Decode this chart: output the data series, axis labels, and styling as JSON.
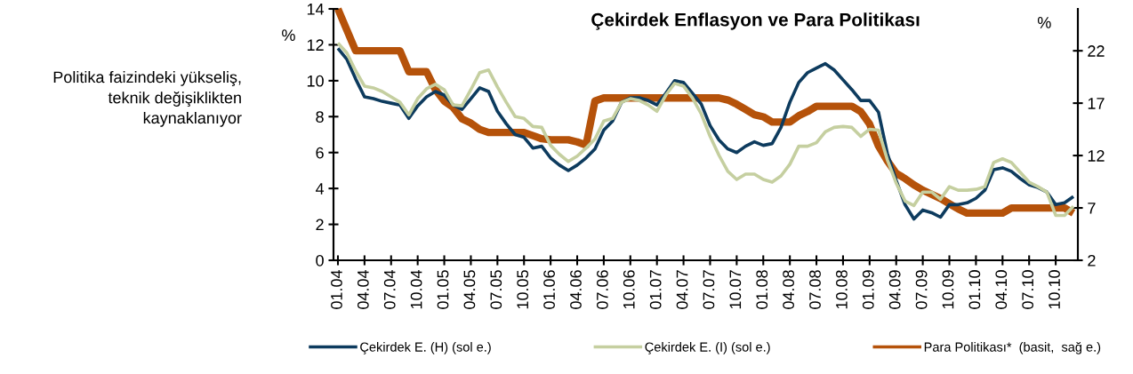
{
  "chart_data": {
    "type": "line",
    "title": "Çekirdek Enflasyon ve Para Politikası",
    "ylabel": "%",
    "y2label": "%",
    "annotations": [
      "Politika faizindeki yükseliş,\nteknik değişiklikten\nkaynaklanıyor"
    ],
    "categories": [
      "01.04",
      null,
      null,
      "04.04",
      null,
      null,
      "07.04",
      null,
      null,
      "10.04",
      null,
      null,
      "01.05",
      null,
      null,
      "04.05",
      null,
      null,
      "07.05",
      null,
      null,
      "10.05",
      null,
      null,
      "01.06",
      null,
      null,
      "04.06",
      null,
      null,
      "07.06",
      null,
      null,
      "10.06",
      null,
      null,
      "01.07",
      null,
      null,
      "04.07",
      null,
      null,
      "07.07",
      null,
      null,
      "10.07",
      null,
      null,
      "01.08",
      null,
      null,
      "04.08",
      null,
      null,
      "07.08",
      null,
      null,
      "10.08",
      null,
      null,
      "01.09",
      null,
      null,
      "04.09",
      null,
      null,
      "07.09",
      null,
      null,
      "10.09",
      null,
      null,
      "01.10",
      null,
      null,
      "04.10",
      null,
      null,
      "07.10",
      null,
      null,
      "10.10",
      null,
      null
    ],
    "series": [
      {
        "name": "Çekirdek E. (H) (sol e.)",
        "color": "#0d3b5e",
        "values": [
          11.8,
          11.2,
          10.1,
          9.1,
          9.0,
          8.85,
          8.75,
          8.65,
          7.9,
          8.6,
          9.1,
          9.4,
          9.2,
          8.65,
          8.4,
          9.0,
          9.6,
          9.4,
          8.3,
          7.6,
          7.0,
          6.85,
          6.25,
          6.35,
          5.7,
          5.3,
          5.0,
          5.3,
          5.7,
          6.2,
          7.25,
          7.75,
          8.8,
          9.05,
          9.05,
          8.9,
          8.65,
          9.3,
          10.0,
          9.9,
          9.3,
          8.7,
          7.5,
          6.7,
          6.2,
          6.0,
          6.35,
          6.6,
          6.4,
          6.5,
          7.4,
          8.8,
          9.9,
          10.45,
          10.7,
          10.95,
          10.6,
          10.05,
          9.5,
          8.9,
          8.9,
          8.25,
          5.95,
          4.45,
          3.1,
          2.3,
          2.8,
          2.65,
          2.4,
          3.1,
          3.1,
          3.2,
          3.45,
          3.9,
          5.05,
          5.15,
          4.95,
          4.55,
          4.2,
          4.05,
          3.8,
          3.1,
          3.2,
          3.55
        ]
      },
      {
        "name": "Çekirdek E. (I) (sol e.)",
        "color": "#c5cfa0",
        "values": [
          12.1,
          11.55,
          10.55,
          9.7,
          9.6,
          9.4,
          9.1,
          8.8,
          8.1,
          9.0,
          9.55,
          9.8,
          9.5,
          8.65,
          8.6,
          9.5,
          10.45,
          10.6,
          9.65,
          8.8,
          8.0,
          7.9,
          7.45,
          7.4,
          6.4,
          5.9,
          5.5,
          5.8,
          6.25,
          6.75,
          7.75,
          7.9,
          8.8,
          9.0,
          8.9,
          8.65,
          8.3,
          9.2,
          9.85,
          9.7,
          9.05,
          8.15,
          6.9,
          5.85,
          4.95,
          4.5,
          4.8,
          4.8,
          4.5,
          4.35,
          4.7,
          5.35,
          6.35,
          6.35,
          6.55,
          7.15,
          7.4,
          7.45,
          7.4,
          6.9,
          7.3,
          7.25,
          5.6,
          4.3,
          3.3,
          3.05,
          3.8,
          3.8,
          3.4,
          4.1,
          3.9,
          3.9,
          3.95,
          4.1,
          5.45,
          5.65,
          5.45,
          4.9,
          4.35,
          4.1,
          3.8,
          2.5,
          2.5,
          3.0
        ]
      },
      {
        "name": "Para Politikası*  (basit,  sağ e.)",
        "color": "#b5520a",
        "axis": "y2",
        "values": [
          26,
          24.0,
          22,
          22,
          22,
          22,
          22,
          22,
          20,
          20,
          20,
          18.3,
          17.2,
          16.6,
          15.5,
          15.1,
          14.5,
          14.2,
          14.2,
          14.2,
          14.2,
          14.2,
          13.9,
          13.6,
          13.5,
          13.5,
          13.5,
          13.3,
          13.0,
          17.2,
          17.5,
          17.5,
          17.5,
          17.5,
          17.5,
          17.5,
          17.5,
          17.5,
          17.5,
          17.5,
          17.5,
          17.5,
          17.5,
          17.5,
          17.3,
          16.9,
          16.4,
          15.9,
          15.7,
          15.2,
          15.2,
          15.2,
          15.8,
          16.2,
          16.7,
          16.7,
          16.7,
          16.7,
          16.7,
          16.2,
          15.0,
          12.9,
          11.5,
          10.3,
          9.8,
          9.2,
          8.7,
          8.3,
          7.9,
          7.4,
          6.9,
          6.5,
          6.5,
          6.5,
          6.5,
          6.5,
          7.0,
          7.0,
          7.0,
          7.0,
          7.0,
          7.0,
          7.0,
          6.5
        ]
      }
    ],
    "ylim": [
      0,
      14
    ],
    "yticks": [
      0,
      2,
      4,
      6,
      8,
      10,
      12,
      14
    ],
    "y2lim": [
      2,
      26
    ],
    "y2ticks": [
      2,
      7,
      12,
      17,
      22
    ],
    "grid": false,
    "legend": "bottom"
  }
}
